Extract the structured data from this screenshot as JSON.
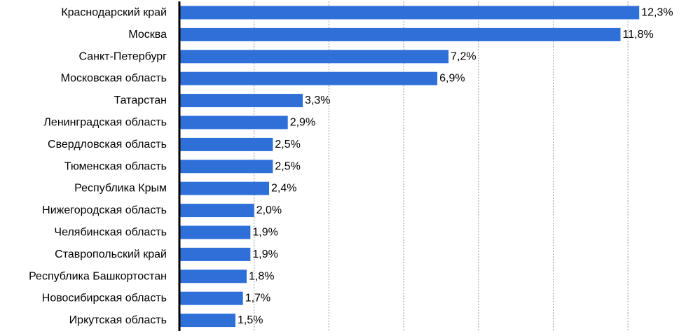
{
  "chart_data": {
    "type": "bar",
    "orientation": "horizontal",
    "categories": [
      "Краснодарский край",
      "Москва",
      "Санкт-Петербург",
      "Московская область",
      "Татарстан",
      "Ленинградская область",
      "Свердловская область",
      "Тюменская область",
      "Республика Крым",
      "Нижегородская область",
      "Челябинская область",
      "Ставропольский край",
      "Республика Башкортостан",
      "Новосибирская область",
      "Иркутская область"
    ],
    "values": [
      12.3,
      11.8,
      7.2,
      6.9,
      3.3,
      2.9,
      2.5,
      2.5,
      2.4,
      2.0,
      1.9,
      1.9,
      1.8,
      1.7,
      1.5
    ],
    "value_labels": [
      "12,3%",
      "11,8%",
      "7,2%",
      "6,9%",
      "3,3%",
      "2,9%",
      "2,5%",
      "2,5%",
      "2,4%",
      "2,0%",
      "1,9%",
      "1,9%",
      "1,8%",
      "1,7%",
      "1,5%"
    ],
    "xlim": [
      0,
      14
    ],
    "gridlines_at": [
      2,
      4,
      6,
      8,
      10,
      12,
      14
    ],
    "grid": "vertical dotted",
    "legend": "none",
    "bar_color": "#2f6fd8",
    "axis_color": "#000000",
    "grid_color": "#9a9a9a",
    "text_color": "#000000",
    "title": "",
    "xlabel": "",
    "ylabel": ""
  }
}
